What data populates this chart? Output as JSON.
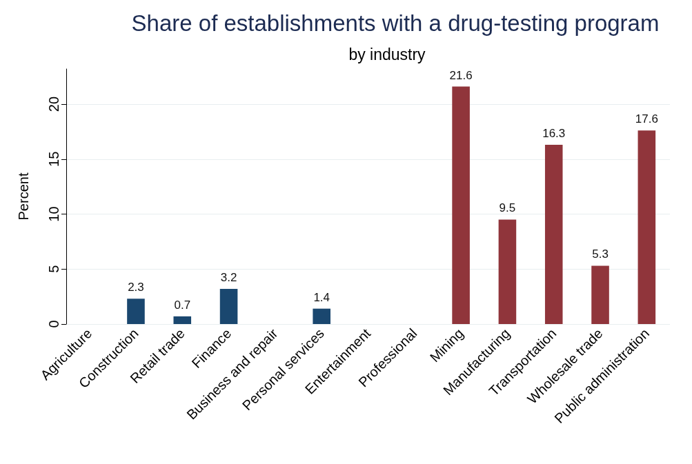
{
  "chart_data": {
    "type": "bar",
    "title": "Share of establishments with a drug-testing program",
    "subtitle": "by industry",
    "ylabel": "Percent",
    "categories": [
      "Agriculture",
      "Construction",
      "Retail trade",
      "Finance",
      "Business and repair",
      "Personal services",
      "Entertainment",
      "Professional",
      "Mining",
      "Manufacturing",
      "Transportation",
      "Wholesale trade",
      "Public administration"
    ],
    "values": [
      null,
      2.3,
      0.7,
      3.2,
      null,
      1.4,
      null,
      null,
      21.6,
      9.5,
      16.3,
      5.3,
      17.6
    ],
    "colors": [
      "#1a476f",
      "#1a476f",
      "#1a476f",
      "#1a476f",
      "#1a476f",
      "#1a476f",
      "#1a476f",
      "#1a476f",
      "#90353b",
      "#90353b",
      "#90353b",
      "#90353b",
      "#90353b"
    ],
    "ylim": [
      0,
      23.2
    ],
    "yticks": [
      0,
      5,
      10,
      15,
      20
    ],
    "grid": "y",
    "data_labels": true
  }
}
